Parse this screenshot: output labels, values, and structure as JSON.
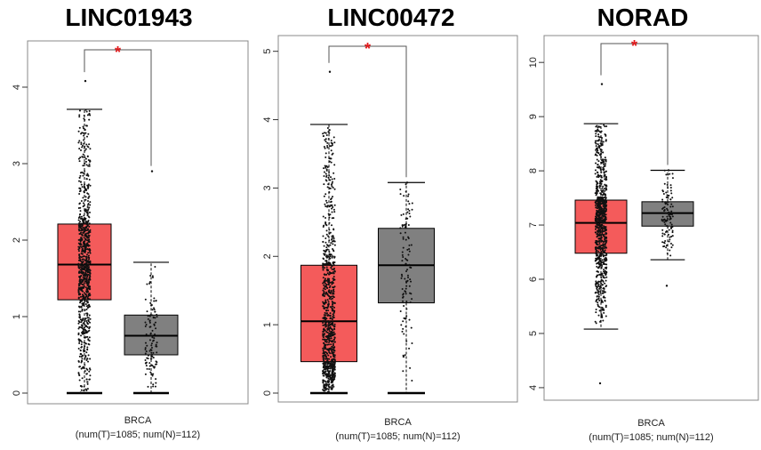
{
  "chart_data": [
    {
      "type": "box",
      "title": "LINC01943",
      "xlabel_line1": "BRCA",
      "xlabel_line2": "(num(T)=1085; num(N)=112)",
      "ylim": [
        0,
        4.5
      ],
      "yticks": [
        "0",
        "1",
        "2",
        "3",
        "4"
      ],
      "significance": "*",
      "grid": false,
      "series": [
        {
          "group": "T",
          "n": 1085,
          "color": "#f45b5b",
          "min": 0,
          "q1": 1.22,
          "median": 1.68,
          "q3": 2.21,
          "whisker_high": 3.71,
          "max_point": 4.08
        },
        {
          "group": "N",
          "n": 112,
          "color": "#808080",
          "min": 0,
          "q1": 0.5,
          "median": 0.75,
          "q3": 1.02,
          "whisker_high": 1.71,
          "max_point": 2.9
        }
      ]
    },
    {
      "type": "box",
      "title": "LINC00472",
      "xlabel_line1": "BRCA",
      "xlabel_line2": "(num(T)=1085; num(N)=112)",
      "ylim": [
        0,
        5.1
      ],
      "yticks": [
        "0",
        "1",
        "2",
        "3",
        "4",
        "5"
      ],
      "significance": "*",
      "grid": false,
      "series": [
        {
          "group": "T",
          "n": 1085,
          "color": "#f45b5b",
          "min": 0,
          "q1": 0.46,
          "median": 1.05,
          "q3": 1.87,
          "whisker_high": 3.93,
          "max_point": 4.7
        },
        {
          "group": "N",
          "n": 112,
          "color": "#808080",
          "min": 0,
          "q1": 1.32,
          "median": 1.87,
          "q3": 2.41,
          "whisker_high": 3.08,
          "max_point": 3.08
        }
      ]
    },
    {
      "type": "box",
      "title": "NORAD",
      "xlabel_line1": "BRCA",
      "xlabel_line2": "(num(T)=1085; num(N)=112)",
      "ylim": [
        3.9,
        10.2
      ],
      "yticks": [
        "4",
        "5",
        "6",
        "7",
        "8",
        "9",
        "10"
      ],
      "significance": "*",
      "grid": false,
      "series": [
        {
          "group": "T",
          "n": 1085,
          "color": "#f45b5b",
          "whisker_low": 5.08,
          "q1": 6.48,
          "median": 7.04,
          "q3": 7.46,
          "whisker_high": 8.87,
          "min_point": 4.08,
          "max_point": 9.6
        },
        {
          "group": "N",
          "n": 112,
          "color": "#808080",
          "whisker_low": 6.36,
          "q1": 6.98,
          "median": 7.22,
          "q3": 7.43,
          "whisker_high": 8.01,
          "min_point": 5.88,
          "max_point": 8.01
        }
      ]
    }
  ]
}
